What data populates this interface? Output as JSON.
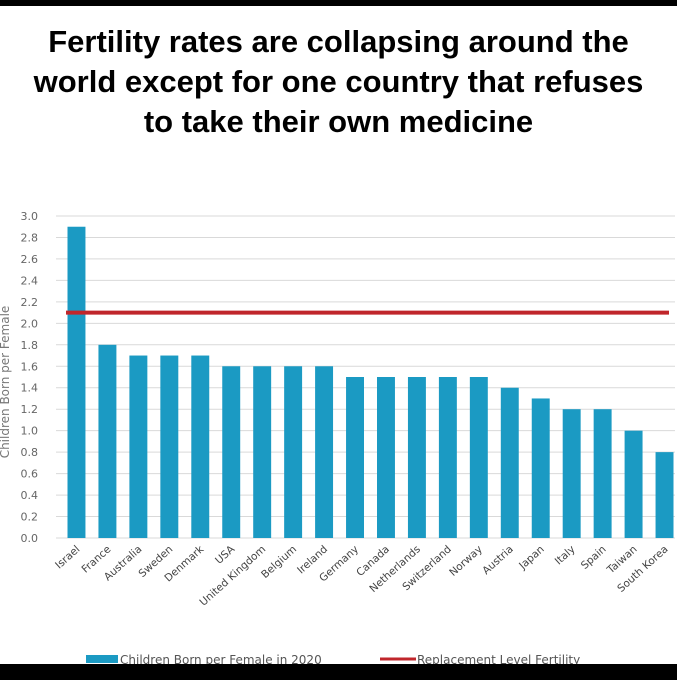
{
  "chart_data": {
    "type": "bar",
    "title": "Fertility rates are collapsing around the world except for one country that refuses to take their own medicine",
    "xlabel": "",
    "ylabel": "Children Born per Female",
    "ylim": [
      0,
      3.0
    ],
    "yticks": [
      "0.0",
      "0.2",
      "0.4",
      "0.6",
      "0.8",
      "1.0",
      "1.2",
      "1.4",
      "1.6",
      "1.8",
      "2.0",
      "2.2",
      "2.4",
      "2.6",
      "2.8",
      "3.0"
    ],
    "grid": true,
    "legend_position": "bottom",
    "categories": [
      "Israel",
      "France",
      "Australia",
      "Sweden",
      "Denmark",
      "USA",
      "United Kingdom",
      "Belgium",
      "Ireland",
      "Germany",
      "Canada",
      "Netherlands",
      "Switzerland",
      "Norway",
      "Austria",
      "Japan",
      "Italy",
      "Spain",
      "Taiwan",
      "South Korea"
    ],
    "series": [
      {
        "name": "Children Born per Female in 2020",
        "type": "bar",
        "color": "#1b9ac3",
        "values": [
          2.9,
          1.8,
          1.7,
          1.7,
          1.7,
          1.6,
          1.6,
          1.6,
          1.6,
          1.5,
          1.5,
          1.5,
          1.5,
          1.5,
          1.4,
          1.3,
          1.2,
          1.2,
          1.0,
          0.8
        ]
      },
      {
        "name": "Replacement Level Fertility",
        "type": "line",
        "color": "#c0262b",
        "value": 2.1
      }
    ]
  }
}
